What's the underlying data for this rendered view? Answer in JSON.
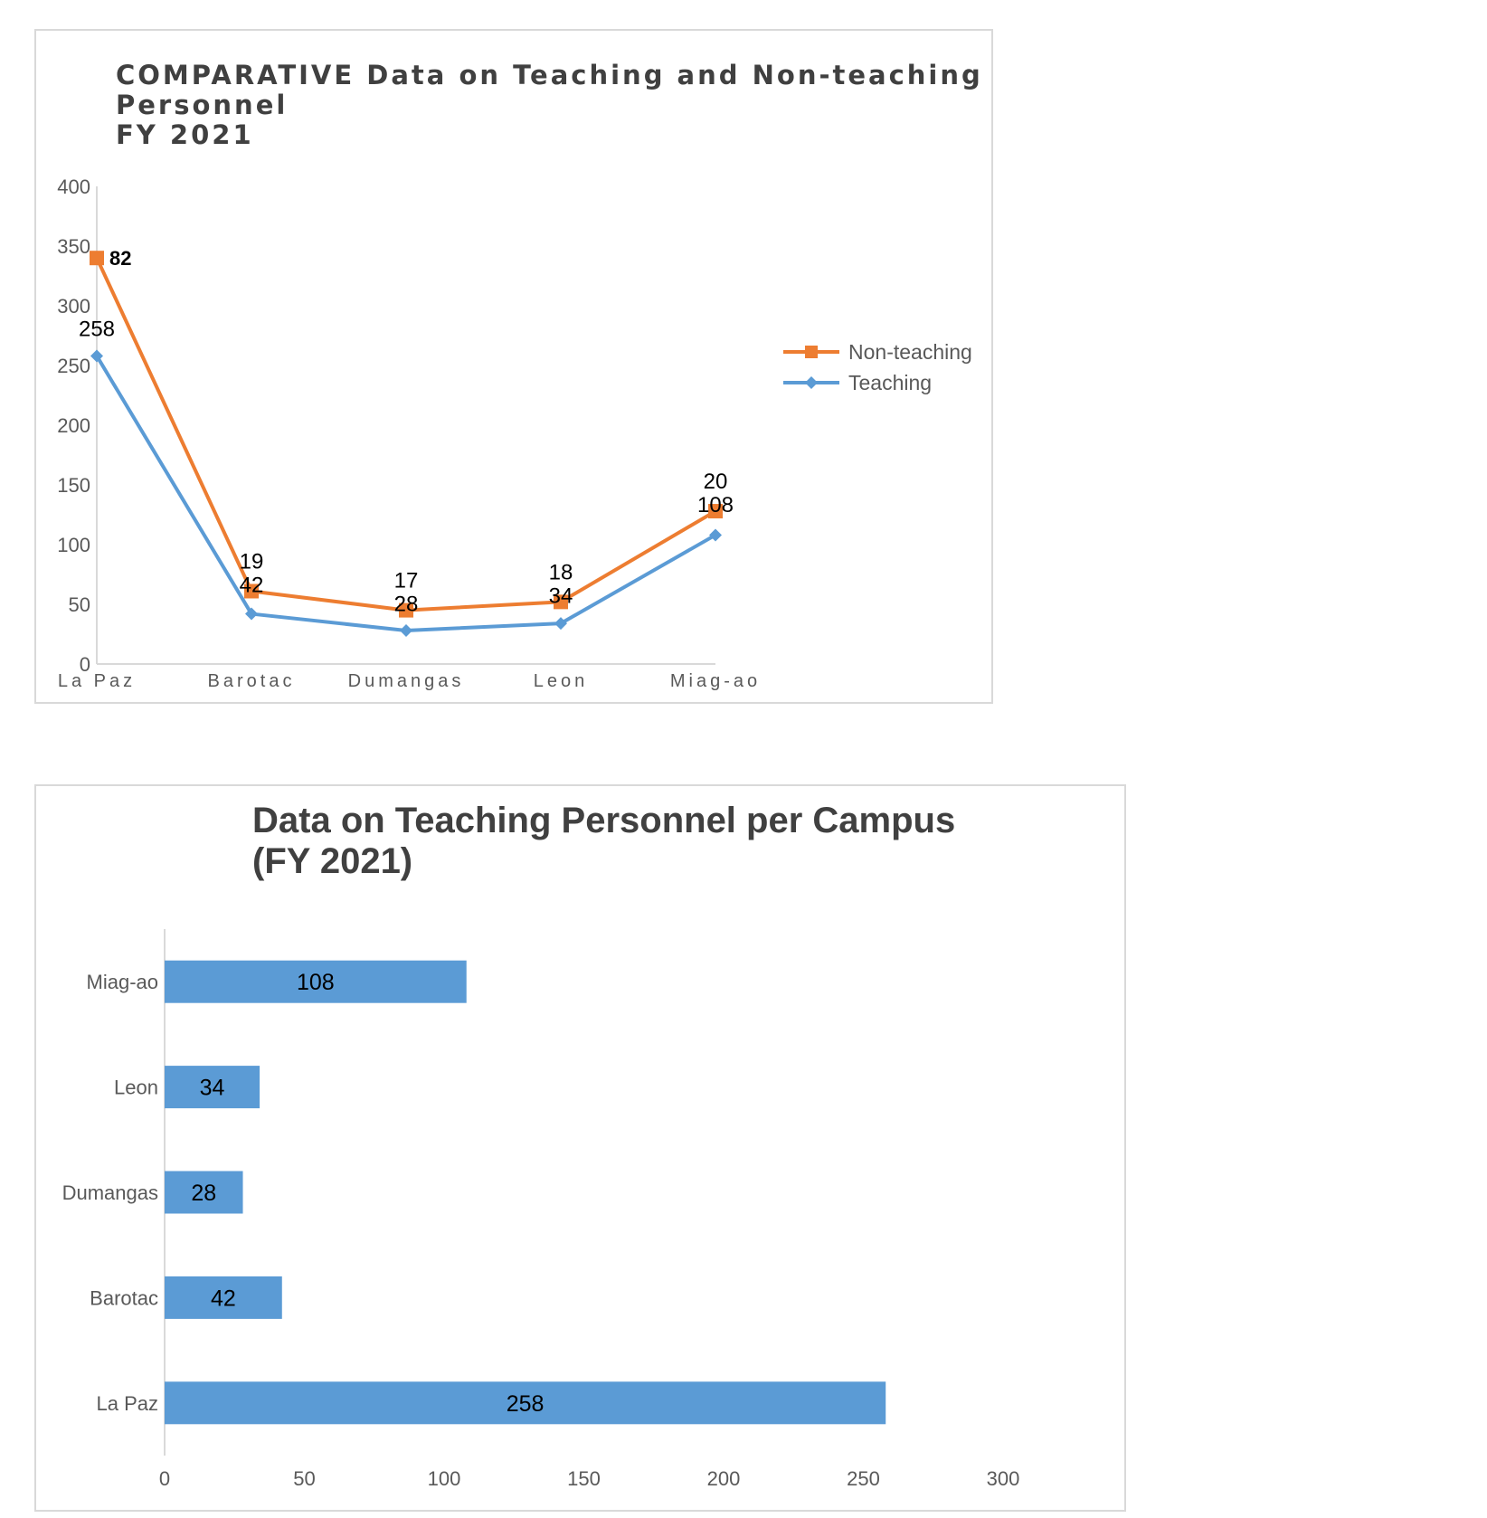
{
  "chart_data": [
    {
      "type": "line",
      "title_lines": [
        "COMPARATIVE Data on Teaching and Non-teaching",
        "Personnel",
        "FY 2021"
      ],
      "categories": [
        "La Paz",
        "Barotac",
        "Dumangas",
        "Leon",
        "Miag-ao"
      ],
      "ylim": [
        0,
        400
      ],
      "yticks": [
        "0",
        "50",
        "100",
        "150",
        "200",
        "250",
        "300",
        "350",
        "400"
      ],
      "stacked": true,
      "series": [
        {
          "name": "Teaching",
          "values": [
            258,
            42,
            28,
            34,
            108
          ],
          "color": "#5b9bd5",
          "marker": "diamond"
        },
        {
          "name": "Non-teaching",
          "values": [
            82,
            19,
            17,
            18,
            20
          ],
          "color": "#ed7d31",
          "marker": "square"
        }
      ],
      "legend": "right",
      "grid": false
    },
    {
      "type": "bar",
      "orientation": "horizontal",
      "title_lines": [
        "Data on Teaching Personnel per Campus",
        "(FY 2021)"
      ],
      "categories": [
        "La Paz",
        "Barotac",
        "Dumangas",
        "Leon",
        "Miag-ao"
      ],
      "values": [
        258,
        42,
        28,
        34,
        108
      ],
      "xlim": [
        0,
        300
      ],
      "xticks": [
        "0",
        "50",
        "100",
        "150",
        "200",
        "250",
        "300"
      ],
      "color": "#5b9bd5",
      "grid": false
    }
  ]
}
